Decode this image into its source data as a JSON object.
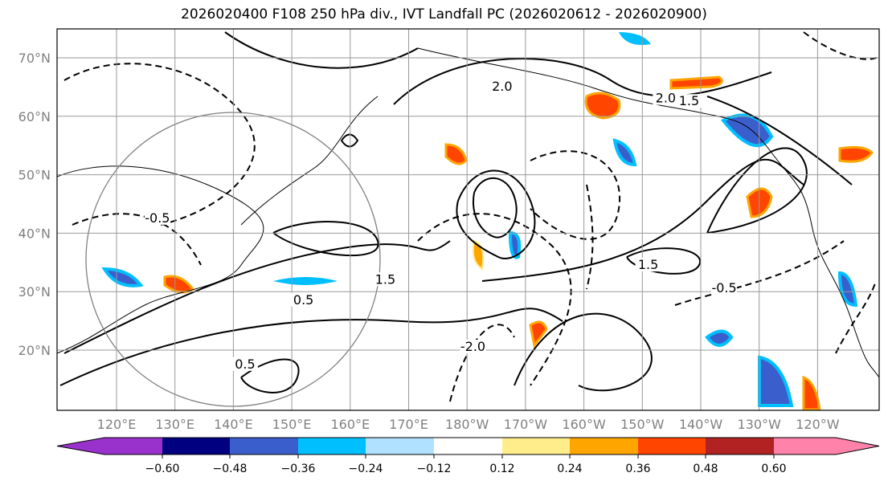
{
  "title": "2026020400 F108 250 hPa div., IVT Landfall PC (2026020612 - 2026020900)",
  "chart_data": {
    "type": "heatmap",
    "title": "2026020400 F108 250 hPa div., IVT Landfall PC (2026020612 - 2026020900)",
    "lat_range": [
      10,
      75
    ],
    "lon_range": [
      110,
      250
    ],
    "lat_ticks": [
      {
        "v": 70,
        "label": "70°N"
      },
      {
        "v": 60,
        "label": "60°N"
      },
      {
        "v": 50,
        "label": "50°N"
      },
      {
        "v": 40,
        "label": "40°N"
      },
      {
        "v": 30,
        "label": "30°N"
      },
      {
        "v": 20,
        "label": "20°N"
      }
    ],
    "lon_ticks": [
      {
        "v": 120,
        "label": "120°E"
      },
      {
        "v": 130,
        "label": "130°E"
      },
      {
        "v": 140,
        "label": "140°E"
      },
      {
        "v": 150,
        "label": "150°E"
      },
      {
        "v": 160,
        "label": "160°E"
      },
      {
        "v": 170,
        "label": "170°E"
      },
      {
        "v": 180,
        "label": "180°W"
      },
      {
        "v": 190,
        "label": "170°W"
      },
      {
        "v": 200,
        "label": "160°W"
      },
      {
        "v": 210,
        "label": "150°W"
      },
      {
        "v": 220,
        "label": "140°W"
      },
      {
        "v": 230,
        "label": "130°W"
      },
      {
        "v": 240,
        "label": "120°W"
      }
    ],
    "colorbar": {
      "levels": [
        -0.6,
        -0.48,
        -0.36,
        -0.24,
        -0.12,
        0.12,
        0.24,
        0.36,
        0.48,
        0.6
      ],
      "tick_labels": [
        "−0.60",
        "−0.48",
        "−0.36",
        "−0.24",
        "−0.12",
        "0.12",
        "0.24",
        "0.36",
        "0.48",
        "0.60"
      ],
      "colors": [
        "#9932CC",
        "#000080",
        "#3A5FCD",
        "#00BFFF",
        "#B0E2FF",
        "#FFFFFF",
        "#FFEC8B",
        "#FFA500",
        "#FF4500",
        "#B22222",
        "#FF82AB"
      ],
      "extend": "both"
    },
    "contour_labels": [
      {
        "text": "2.0",
        "lat": 62.5,
        "lon": 214
      },
      {
        "text": "1.5",
        "lat": 62,
        "lon": 218
      },
      {
        "text": "2.0",
        "lat": 64.5,
        "lon": 186
      },
      {
        "text": "-0.5",
        "lat": 30,
        "lon": 224
      },
      {
        "text": "0.5",
        "lat": 28,
        "lon": 152
      },
      {
        "text": "1.5",
        "lat": 31.5,
        "lon": 166
      },
      {
        "text": "0.5",
        "lat": 17,
        "lon": 142
      },
      {
        "text": "1.5",
        "lat": 34,
        "lon": 211
      },
      {
        "text": "-2.0",
        "lat": 20,
        "lon": 181
      },
      {
        "text": "-0.5",
        "lat": 42,
        "lon": 127
      }
    ],
    "circle": {
      "center_lat": 33,
      "center_lon": 140,
      "radius_deg": 25
    }
  }
}
